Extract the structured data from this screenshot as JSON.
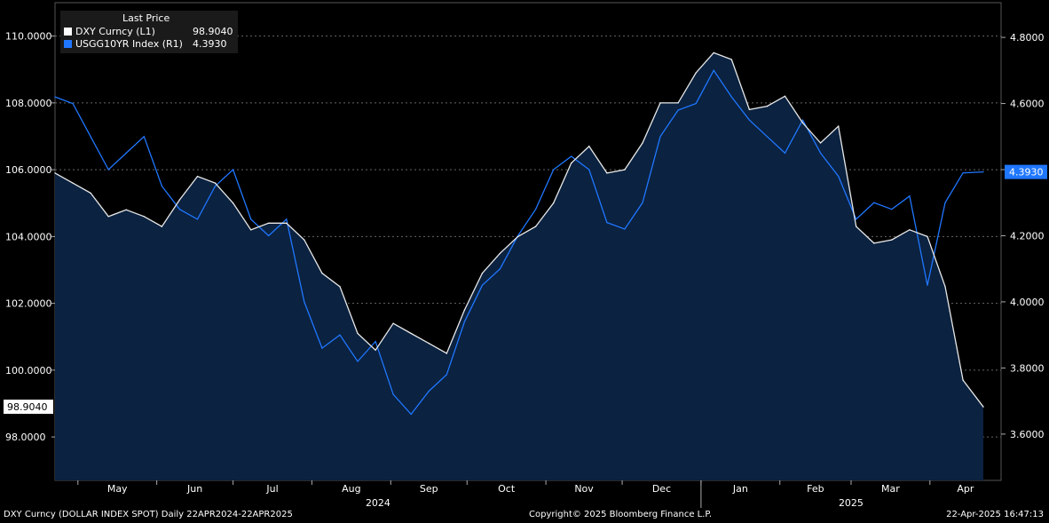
{
  "chart_data": {
    "type": "line",
    "left_axis_ticks": [
      "110.0000",
      "108.0000",
      "106.0000",
      "104.0000",
      "102.0000",
      "100.0000",
      "98.0000"
    ],
    "left_axis_values": [
      110,
      108,
      106,
      104,
      102,
      100,
      98
    ],
    "right_axis_ticks": [
      "4.8000",
      "4.6000",
      "4.4000",
      "4.2000",
      "4.0000",
      "3.8000",
      "3.6000"
    ],
    "right_axis_values": [
      4.8,
      4.6,
      4.4,
      4.2,
      4.0,
      3.8,
      3.6
    ],
    "ylim_left": [
      96.7,
      111.0
    ],
    "ylim_right": [
      3.46,
      4.905
    ],
    "x_months": [
      "May",
      "Jun",
      "Jul",
      "Aug",
      "Sep",
      "Oct",
      "Nov",
      "Dec",
      "Jan",
      "Feb",
      "Mar",
      "Apr"
    ],
    "x_years": [
      "2024",
      "2025"
    ],
    "legend_title": "Last Price",
    "series": [
      {
        "name": "DXY Curncy  (L1)",
        "last_value": "98.9040",
        "color": "#ffffff",
        "axis": "left",
        "x": [
          "2024-04-22",
          "2024-04-29",
          "2024-05-06",
          "2024-05-13",
          "2024-05-20",
          "2024-05-27",
          "2024-06-03",
          "2024-06-10",
          "2024-06-17",
          "2024-06-24",
          "2024-07-01",
          "2024-07-08",
          "2024-07-15",
          "2024-07-22",
          "2024-07-29",
          "2024-08-05",
          "2024-08-12",
          "2024-08-19",
          "2024-08-26",
          "2024-09-02",
          "2024-09-09",
          "2024-09-16",
          "2024-09-23",
          "2024-09-30",
          "2024-10-07",
          "2024-10-14",
          "2024-10-21",
          "2024-10-28",
          "2024-11-04",
          "2024-11-11",
          "2024-11-18",
          "2024-11-25",
          "2024-12-02",
          "2024-12-09",
          "2024-12-16",
          "2024-12-23",
          "2024-12-30",
          "2025-01-06",
          "2025-01-13",
          "2025-01-20",
          "2025-01-27",
          "2025-02-03",
          "2025-02-10",
          "2025-02-17",
          "2025-02-24",
          "2025-03-03",
          "2025-03-10",
          "2025-03-17",
          "2025-03-24",
          "2025-03-31",
          "2025-04-07",
          "2025-04-14",
          "2025-04-22"
        ],
        "values": [
          105.9,
          105.6,
          105.3,
          104.6,
          104.8,
          104.6,
          104.3,
          105.1,
          105.8,
          105.6,
          105.0,
          104.2,
          104.4,
          104.4,
          103.9,
          102.9,
          102.5,
          101.1,
          100.6,
          101.4,
          101.1,
          100.8,
          100.5,
          101.8,
          102.9,
          103.5,
          104.0,
          104.3,
          105.0,
          106.2,
          106.7,
          105.9,
          106.0,
          106.8,
          108.0,
          108.0,
          108.9,
          109.5,
          109.3,
          107.8,
          107.9,
          108.2,
          107.4,
          106.8,
          107.3,
          104.3,
          103.8,
          103.9,
          104.2,
          104.0,
          102.5,
          99.7,
          98.9
        ]
      },
      {
        "name": "USGG10YR Index  (R1)",
        "last_value": "4.3930",
        "color": "#1f77ff",
        "axis": "right",
        "x": [
          "2024-04-22",
          "2024-04-29",
          "2024-05-06",
          "2024-05-13",
          "2024-05-20",
          "2024-05-27",
          "2024-06-03",
          "2024-06-10",
          "2024-06-17",
          "2024-06-24",
          "2024-07-01",
          "2024-07-08",
          "2024-07-15",
          "2024-07-22",
          "2024-07-29",
          "2024-08-05",
          "2024-08-12",
          "2024-08-19",
          "2024-08-26",
          "2024-09-02",
          "2024-09-09",
          "2024-09-16",
          "2024-09-23",
          "2024-09-30",
          "2024-10-07",
          "2024-10-14",
          "2024-10-21",
          "2024-10-28",
          "2024-11-04",
          "2024-11-11",
          "2024-11-18",
          "2024-11-25",
          "2024-12-02",
          "2024-12-09",
          "2024-12-16",
          "2024-12-23",
          "2024-12-30",
          "2025-01-06",
          "2025-01-13",
          "2025-01-20",
          "2025-01-27",
          "2025-02-03",
          "2025-02-10",
          "2025-02-17",
          "2025-02-24",
          "2025-03-03",
          "2025-03-10",
          "2025-03-17",
          "2025-03-24",
          "2025-03-31",
          "2025-04-07",
          "2025-04-14",
          "2025-04-22"
        ],
        "values": [
          4.62,
          4.6,
          4.5,
          4.4,
          4.45,
          4.5,
          4.35,
          4.28,
          4.25,
          4.35,
          4.4,
          4.25,
          4.2,
          4.25,
          4.0,
          3.86,
          3.9,
          3.82,
          3.88,
          3.72,
          3.66,
          3.73,
          3.78,
          3.94,
          4.05,
          4.1,
          4.2,
          4.28,
          4.4,
          4.44,
          4.4,
          4.24,
          4.22,
          4.3,
          4.5,
          4.58,
          4.6,
          4.7,
          4.62,
          4.55,
          4.5,
          4.45,
          4.55,
          4.45,
          4.38,
          4.25,
          4.3,
          4.28,
          4.32,
          4.05,
          4.3,
          4.39,
          4.393
        ]
      }
    ],
    "left_marker": "98.9040",
    "right_marker": "4.3930"
  },
  "footer": {
    "left": "DXY Curncy (DOLLAR INDEX SPOT)  Daily 22APR2024-22APR2025",
    "center": "Copyright© 2025 Bloomberg Finance L.P.",
    "right": "22-Apr-2025 16:47:13"
  }
}
